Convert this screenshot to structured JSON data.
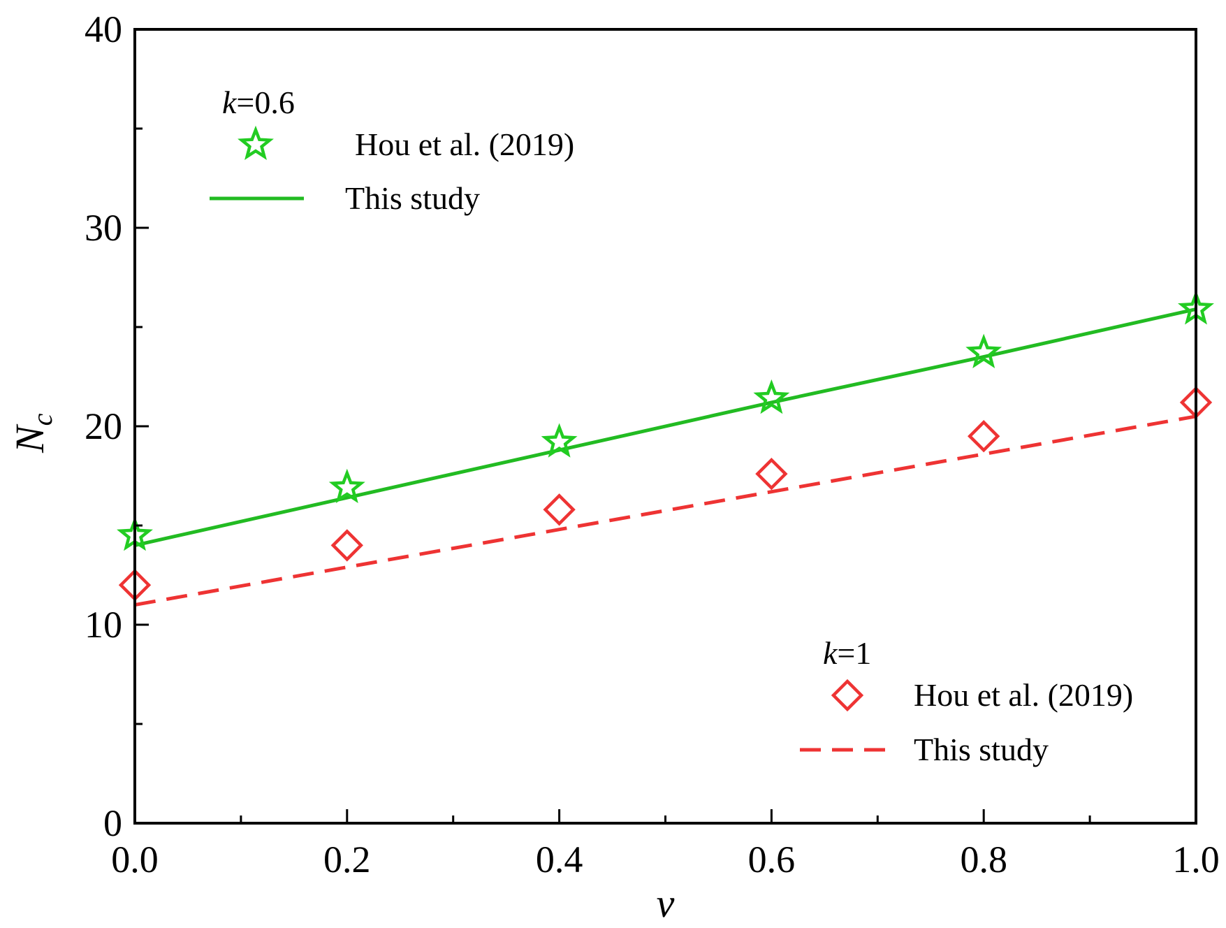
{
  "chart_data": {
    "type": "line",
    "title": "",
    "xlabel": "v",
    "ylabel": "N",
    "ylabel_subscript": "c",
    "xlim": [
      0,
      1.0
    ],
    "ylim": [
      0,
      40
    ],
    "x_ticks": [
      "0.0",
      "0.2",
      "0.4",
      "0.6",
      "0.8",
      "1.0"
    ],
    "x_tick_values": [
      0,
      0.2,
      0.4,
      0.6,
      0.8,
      1.0
    ],
    "x_minor_ticks": [
      0.1,
      0.3,
      0.5,
      0.7,
      0.9
    ],
    "y_ticks": [
      "0",
      "10",
      "20",
      "30",
      "40"
    ],
    "y_tick_values": [
      0,
      10,
      20,
      30,
      40
    ],
    "y_minor_ticks": [
      5,
      15,
      25,
      35
    ],
    "grid": false,
    "legend_groups": [
      {
        "position": "top-left",
        "title_var": "k",
        "title_value": "=0.6",
        "entries": [
          {
            "label": "Hou et al. (2019)",
            "marker": "star",
            "color": "#22cc22"
          },
          {
            "label": "This study",
            "line": "solid",
            "color": "#22bb22"
          }
        ]
      },
      {
        "position": "bottom-right",
        "title_var": "k",
        "title_value": "=1",
        "entries": [
          {
            "label": "Hou et al. (2019)",
            "marker": "diamond",
            "color": "#ee3333"
          },
          {
            "label": "This study",
            "line": "dashed",
            "color": "#ee3333"
          }
        ]
      }
    ],
    "series": [
      {
        "name": "Hou et al. (2019), k=0.6",
        "kind": "markers",
        "marker": "star",
        "color": "#22cc22",
        "x": [
          0,
          0.2,
          0.4,
          0.6,
          0.8,
          1.0
        ],
        "y": [
          14.5,
          16.9,
          19.2,
          21.4,
          23.7,
          25.9
        ]
      },
      {
        "name": "This study, k=0.6",
        "kind": "line",
        "dash": "solid",
        "color": "#22bb22",
        "x": [
          0,
          0.2,
          0.4,
          0.6,
          0.8,
          1.0
        ],
        "y": [
          14.0,
          16.4,
          18.8,
          21.2,
          23.5,
          25.9
        ]
      },
      {
        "name": "Hou et al. (2019), k=1",
        "kind": "markers",
        "marker": "diamond",
        "color": "#ee3333",
        "x": [
          0,
          0.2,
          0.4,
          0.6,
          0.8,
          1.0
        ],
        "y": [
          12.0,
          14.0,
          15.8,
          17.6,
          19.5,
          21.2
        ]
      },
      {
        "name": "This study, k=1",
        "kind": "line",
        "dash": "dashed",
        "color": "#ee3333",
        "x": [
          0,
          0.2,
          0.4,
          0.6,
          0.8,
          1.0
        ],
        "y": [
          11.0,
          12.9,
          14.8,
          16.7,
          18.6,
          20.5
        ]
      }
    ]
  }
}
